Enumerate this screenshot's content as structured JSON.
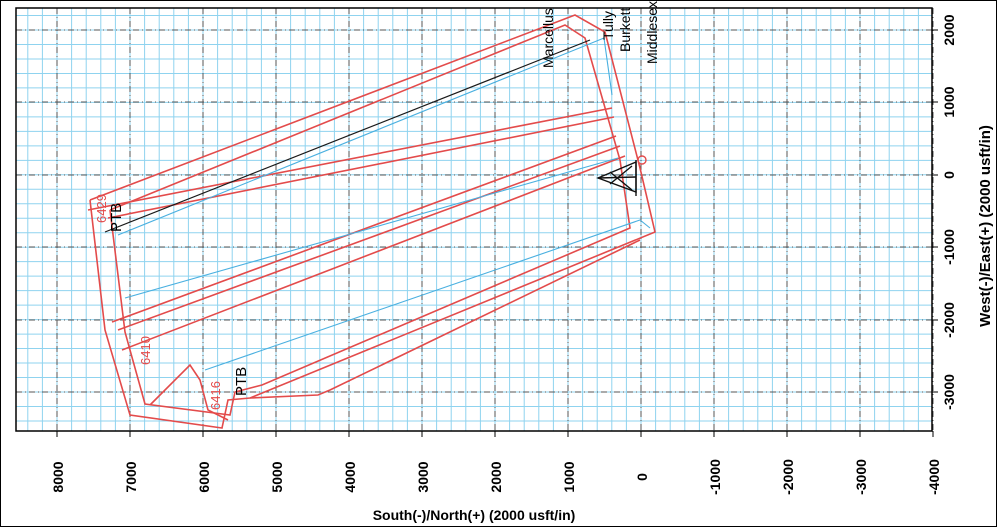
{
  "axes": {
    "x_label": "South(-)/North(+) (2000 usft/in)",
    "y_label": "West(-)/East(+) (2000 usft/in)",
    "x_ticks": [
      "8000",
      "7000",
      "6000",
      "5000",
      "4000",
      "3000",
      "2000",
      "1000",
      "0",
      "-1000",
      "-2000",
      "-3000",
      "-4000"
    ],
    "y_ticks": [
      "2000",
      "1000",
      "0",
      "-1000",
      "-2000",
      "-3000"
    ]
  },
  "formations": [
    "Marcellus",
    "Tully",
    "Burkett",
    "Middlesex"
  ],
  "labels": {
    "ptb_top": "PTB",
    "ptb_bottom": "PTB",
    "tvd_top": "6429",
    "tvd_mid": "6410",
    "tvd_bottom": "6416"
  },
  "colors": {
    "grid": "#8fd3ef",
    "plan": "#e34b4b",
    "actual": "#4ab0e0",
    "text": "#000000"
  }
}
